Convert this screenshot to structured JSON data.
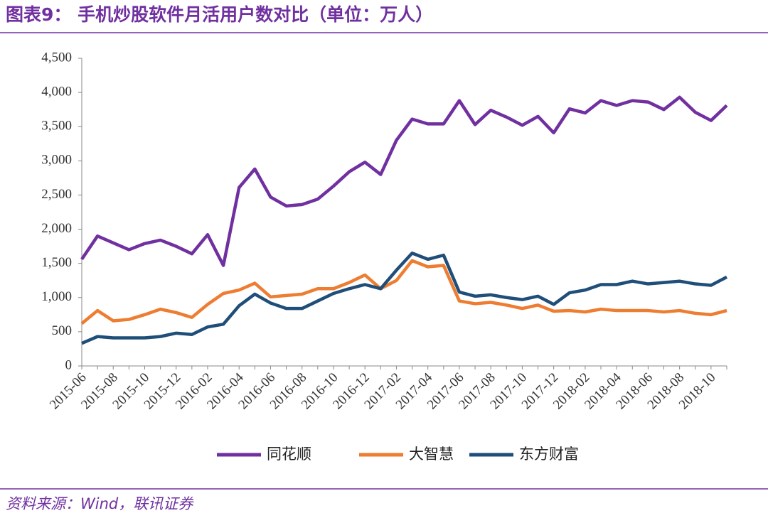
{
  "chart_data": {
    "type": "line",
    "title": "图表9：   手机炒股软件月活用户数对比（单位：万人）",
    "source": "资料来源：Wind，联讯证券",
    "categories": [
      "2015-06",
      null,
      "2015-08",
      null,
      "2015-10",
      null,
      "2015-12",
      null,
      "2016-02",
      null,
      "2016-04",
      null,
      "2016-06",
      null,
      "2016-08",
      null,
      "2016-10",
      null,
      "2016-12",
      null,
      "2017-02",
      null,
      "2017-04",
      null,
      "2017-06",
      null,
      "2017-08",
      null,
      "2017-10",
      null,
      "2017-12",
      null,
      "2018-02",
      null,
      "2018-04",
      null,
      "2018-06",
      null,
      "2018-08",
      null,
      "2018-10",
      null
    ],
    "series": [
      {
        "name": "同花顺",
        "color": "#7030a0",
        "values": [
          1560,
          1900,
          1800,
          1700,
          1790,
          1840,
          1750,
          1640,
          1920,
          1470,
          2610,
          2880,
          2470,
          2340,
          2360,
          2440,
          2630,
          2840,
          2980,
          2800,
          3300,
          3610,
          3540,
          3540,
          3880,
          3530,
          3740,
          3640,
          3520,
          3650,
          3410,
          3760,
          3700,
          3880,
          3810,
          3880,
          3860,
          3750,
          3930,
          3710,
          3590,
          3810
        ]
      },
      {
        "name": "大智慧",
        "color": "#ed7d31",
        "values": [
          620,
          810,
          660,
          680,
          750,
          830,
          780,
          710,
          900,
          1060,
          1110,
          1210,
          1010,
          1030,
          1050,
          1130,
          1130,
          1220,
          1330,
          1130,
          1250,
          1540,
          1450,
          1470,
          950,
          910,
          930,
          890,
          840,
          890,
          800,
          810,
          790,
          830,
          810,
          810,
          810,
          790,
          810,
          770,
          750,
          810
        ]
      },
      {
        "name": "东方财富",
        "color": "#1f4e79",
        "values": [
          330,
          430,
          410,
          410,
          410,
          430,
          480,
          460,
          570,
          610,
          880,
          1050,
          920,
          840,
          840,
          950,
          1060,
          1130,
          1190,
          1130,
          1400,
          1650,
          1560,
          1620,
          1080,
          1020,
          1040,
          1000,
          970,
          1020,
          900,
          1070,
          1110,
          1190,
          1190,
          1240,
          1200,
          1220,
          1240,
          1200,
          1180,
          1300
        ]
      }
    ],
    "ylim": [
      0,
      4500
    ],
    "yticks": [
      0,
      500,
      {
        "value": 1000,
        "label": "1,000"
      },
      {
        "value": 1500,
        "label": "1,500"
      },
      {
        "value": 2000,
        "label": "2,000"
      },
      {
        "value": 2500,
        "label": "2,500"
      },
      {
        "value": 3000,
        "label": "3,000"
      },
      {
        "value": 3500,
        "label": "3,500"
      },
      {
        "value": 4000,
        "label": "4,000"
      },
      {
        "value": 4500,
        "label": "4,500"
      }
    ],
    "grid": false,
    "legend": "bottom"
  }
}
